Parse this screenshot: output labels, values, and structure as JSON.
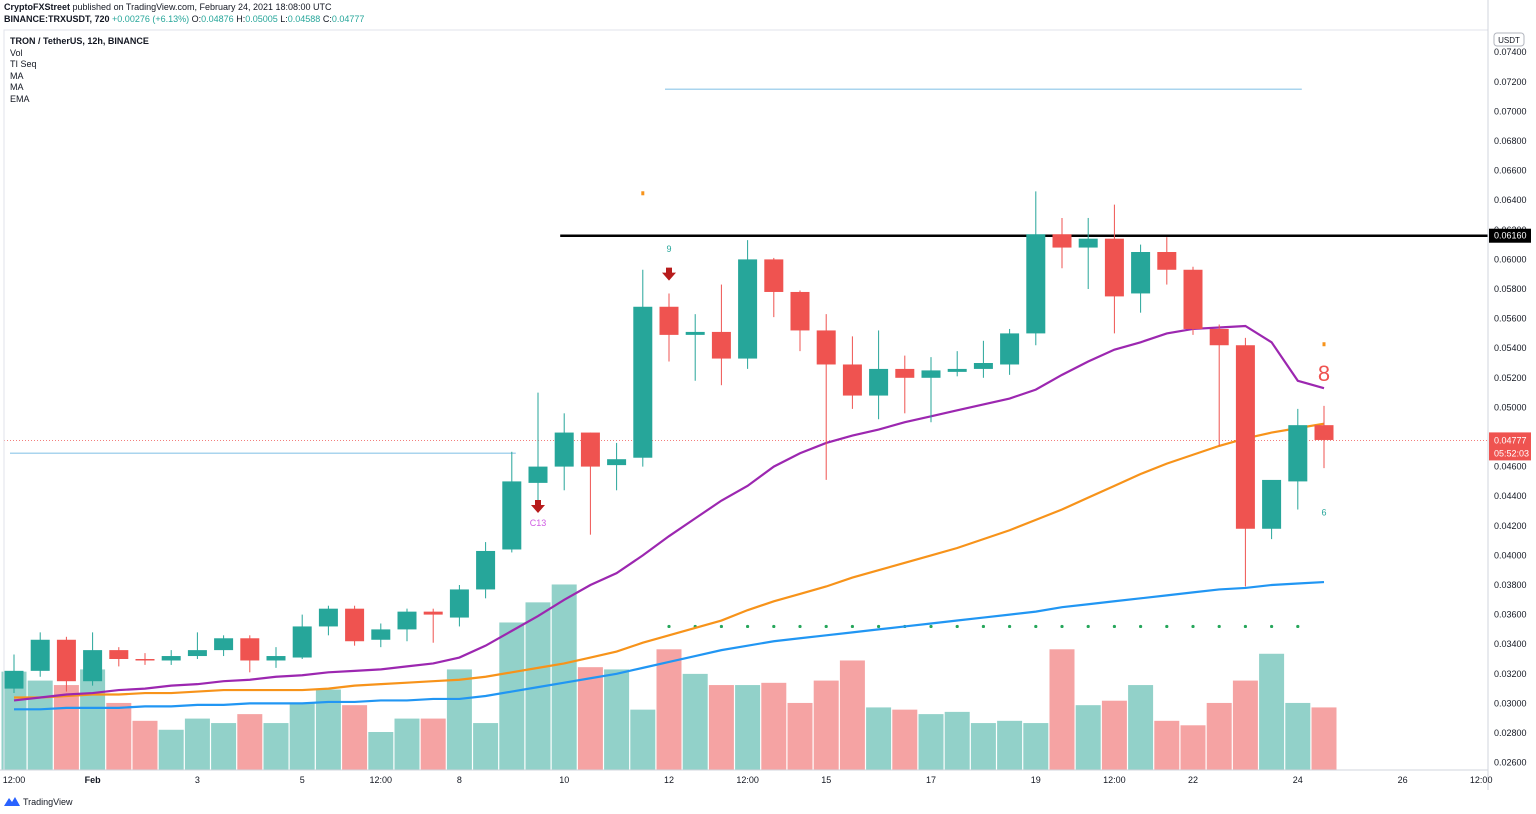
{
  "header": {
    "publisher": "CryptoFXStreet",
    "published_text": "published on TradingView.com, February 24, 2021 18:08:00 UTC",
    "symbol_line": "BINANCE:TRXUSDT, 720",
    "change": "+0.00276 (+6.13%)",
    "o_label": "O:",
    "o_value": "0.04876",
    "h_label": "H:",
    "h_value": "0.05005",
    "l_label": "L:",
    "l_value": "0.04588",
    "c_label": "C:",
    "c_value": "0.04777"
  },
  "legend": {
    "symbol": "TRON / TetherUS, 12h, BINANCE",
    "items": [
      "Vol",
      "TI Seq",
      "MA",
      "MA",
      "EMA"
    ]
  },
  "footer": {
    "brand": "TradingView"
  },
  "colors": {
    "up": "#26a69a",
    "down": "#ef5350",
    "vol_up": "#92d1c9",
    "vol_down": "#f5a3a3",
    "ma_purple": "#9c27b0",
    "ma_orange": "#f7931a",
    "ema_blue": "#2196f3",
    "hline_light": "#a9d4ee",
    "hline_black": "#000000",
    "dots": "#26a65b"
  },
  "chart_data": {
    "type": "candlestick",
    "y_axis": {
      "unit": "USDT",
      "min": 0.0255,
      "max": 0.0755,
      "ticks": [
        "0.02600",
        "0.02800",
        "0.03000",
        "0.03200",
        "0.03400",
        "0.03600",
        "0.03800",
        "0.04000",
        "0.04200",
        "0.04400",
        "0.04600",
        "0.04800",
        "0.05000",
        "0.05200",
        "0.05400",
        "0.05600",
        "0.05800",
        "0.06000",
        "0.06200",
        "0.06400",
        "0.06600",
        "0.06800",
        "0.07000",
        "0.07200",
        "0.07400"
      ]
    },
    "x_axis": {
      "ticks": [
        {
          "i": 0,
          "label": "12:00"
        },
        {
          "i": 3,
          "label": "Feb"
        },
        {
          "i": 7,
          "label": "3"
        },
        {
          "i": 11,
          "label": "5"
        },
        {
          "i": 14,
          "label": "12:00"
        },
        {
          "i": 17,
          "label": "8"
        },
        {
          "i": 21,
          "label": "10"
        },
        {
          "i": 25,
          "label": "12"
        },
        {
          "i": 28,
          "label": "12:00"
        },
        {
          "i": 31,
          "label": "15"
        },
        {
          "i": 35,
          "label": "17"
        },
        {
          "i": 39,
          "label": "19"
        },
        {
          "i": 42,
          "label": "12:00"
        },
        {
          "i": 45,
          "label": "22"
        },
        {
          "i": 49,
          "label": "24"
        },
        {
          "i": 53,
          "label": "26"
        },
        {
          "i": 56,
          "label": "12:00"
        }
      ]
    },
    "candles": [
      {
        "o": 0.031,
        "h": 0.0333,
        "l": 0.0307,
        "c": 0.0322
      },
      {
        "o": 0.0322,
        "h": 0.0348,
        "l": 0.0318,
        "c": 0.0343
      },
      {
        "o": 0.0343,
        "h": 0.0345,
        "l": 0.0308,
        "c": 0.0315
      },
      {
        "o": 0.0315,
        "h": 0.0348,
        "l": 0.0312,
        "c": 0.0336
      },
      {
        "o": 0.0336,
        "h": 0.0338,
        "l": 0.0325,
        "c": 0.033
      },
      {
        "o": 0.033,
        "h": 0.0334,
        "l": 0.0326,
        "c": 0.0329
      },
      {
        "o": 0.0329,
        "h": 0.0336,
        "l": 0.0326,
        "c": 0.0332
      },
      {
        "o": 0.0332,
        "h": 0.0348,
        "l": 0.033,
        "c": 0.0336
      },
      {
        "o": 0.0336,
        "h": 0.0346,
        "l": 0.0332,
        "c": 0.0344
      },
      {
        "o": 0.0344,
        "h": 0.0346,
        "l": 0.0321,
        "c": 0.0329
      },
      {
        "o": 0.0329,
        "h": 0.0338,
        "l": 0.0324,
        "c": 0.0332
      },
      {
        "o": 0.0331,
        "h": 0.036,
        "l": 0.033,
        "c": 0.0352
      },
      {
        "o": 0.0352,
        "h": 0.0366,
        "l": 0.0346,
        "c": 0.0364
      },
      {
        "o": 0.0364,
        "h": 0.0366,
        "l": 0.0339,
        "c": 0.0342
      },
      {
        "o": 0.0343,
        "h": 0.0354,
        "l": 0.0338,
        "c": 0.035
      },
      {
        "o": 0.035,
        "h": 0.0364,
        "l": 0.0342,
        "c": 0.0362
      },
      {
        "o": 0.0362,
        "h": 0.0364,
        "l": 0.0341,
        "c": 0.036
      },
      {
        "o": 0.0358,
        "h": 0.038,
        "l": 0.0352,
        "c": 0.0377
      },
      {
        "o": 0.0377,
        "h": 0.0409,
        "l": 0.0371,
        "c": 0.0403
      },
      {
        "o": 0.0404,
        "h": 0.047,
        "l": 0.0402,
        "c": 0.045
      },
      {
        "o": 0.0449,
        "h": 0.051,
        "l": 0.0436,
        "c": 0.046
      },
      {
        "o": 0.046,
        "h": 0.0496,
        "l": 0.0444,
        "c": 0.0483
      },
      {
        "o": 0.0483,
        "h": 0.0483,
        "l": 0.0414,
        "c": 0.046
      },
      {
        "o": 0.0461,
        "h": 0.0476,
        "l": 0.0444,
        "c": 0.0465
      },
      {
        "o": 0.0466,
        "h": 0.0593,
        "l": 0.046,
        "c": 0.0568
      },
      {
        "o": 0.0568,
        "h": 0.0577,
        "l": 0.0531,
        "c": 0.0549
      },
      {
        "o": 0.0549,
        "h": 0.0563,
        "l": 0.0518,
        "c": 0.0551
      },
      {
        "o": 0.0551,
        "h": 0.0583,
        "l": 0.0515,
        "c": 0.0533
      },
      {
        "o": 0.0533,
        "h": 0.0613,
        "l": 0.0526,
        "c": 0.06
      },
      {
        "o": 0.06,
        "h": 0.0601,
        "l": 0.0561,
        "c": 0.0578
      },
      {
        "o": 0.0578,
        "h": 0.0579,
        "l": 0.0538,
        "c": 0.0552
      },
      {
        "o": 0.0552,
        "h": 0.0563,
        "l": 0.0451,
        "c": 0.0529
      },
      {
        "o": 0.0529,
        "h": 0.0548,
        "l": 0.0499,
        "c": 0.0508
      },
      {
        "o": 0.0508,
        "h": 0.0552,
        "l": 0.0492,
        "c": 0.0526
      },
      {
        "o": 0.0526,
        "h": 0.0535,
        "l": 0.0496,
        "c": 0.052
      },
      {
        "o": 0.052,
        "h": 0.0534,
        "l": 0.049,
        "c": 0.0525
      },
      {
        "o": 0.0524,
        "h": 0.0538,
        "l": 0.0521,
        "c": 0.0526
      },
      {
        "o": 0.0526,
        "h": 0.0545,
        "l": 0.052,
        "c": 0.053
      },
      {
        "o": 0.0529,
        "h": 0.0553,
        "l": 0.0522,
        "c": 0.055
      },
      {
        "o": 0.055,
        "h": 0.0646,
        "l": 0.0542,
        "c": 0.0617
      },
      {
        "o": 0.0617,
        "h": 0.0628,
        "l": 0.0594,
        "c": 0.0608
      },
      {
        "o": 0.0608,
        "h": 0.0628,
        "l": 0.058,
        "c": 0.0614
      },
      {
        "o": 0.0614,
        "h": 0.0637,
        "l": 0.055,
        "c": 0.0575
      },
      {
        "o": 0.0577,
        "h": 0.061,
        "l": 0.0564,
        "c": 0.0605
      },
      {
        "o": 0.0605,
        "h": 0.0615,
        "l": 0.0583,
        "c": 0.0593
      },
      {
        "o": 0.0593,
        "h": 0.0595,
        "l": 0.0549,
        "c": 0.0553
      },
      {
        "o": 0.0553,
        "h": 0.0556,
        "l": 0.0474,
        "c": 0.0542
      },
      {
        "o": 0.0542,
        "h": 0.0547,
        "l": 0.0379,
        "c": 0.0418
      },
      {
        "o": 0.0418,
        "h": 0.045,
        "l": 0.0411,
        "c": 0.0451
      },
      {
        "o": 0.045,
        "h": 0.0499,
        "l": 0.0431,
        "c": 0.0488
      },
      {
        "o": 0.0488,
        "h": 0.0501,
        "l": 0.0459,
        "c": 0.0478
      }
    ],
    "volume": {
      "max": 0.03,
      "values": [
        0.0044,
        0.004,
        0.0038,
        0.0045,
        0.003,
        0.0022,
        0.0018,
        0.0023,
        0.0021,
        0.0025,
        0.0021,
        0.003,
        0.0036,
        0.0029,
        0.0017,
        0.0023,
        0.0023,
        0.0045,
        0.0021,
        0.0066,
        0.0075,
        0.0083,
        0.0046,
        0.0045,
        0.0027,
        0.0054,
        0.0043,
        0.0038,
        0.0038,
        0.0039,
        0.003,
        0.004,
        0.0049,
        0.0028,
        0.0027,
        0.0025,
        0.0026,
        0.0021,
        0.0022,
        0.0021,
        0.0054,
        0.0029,
        0.0031,
        0.0038,
        0.0022,
        0.002,
        0.003,
        0.004,
        0.0052,
        0.003,
        0.0028
      ]
    },
    "ma_purple": [
      0.0302,
      0.0304,
      0.0306,
      0.0307,
      0.0309,
      0.031,
      0.0312,
      0.0313,
      0.0315,
      0.0316,
      0.0318,
      0.0319,
      0.0321,
      0.0322,
      0.0323,
      0.0325,
      0.0327,
      0.0331,
      0.0339,
      0.0349,
      0.0359,
      0.037,
      0.038,
      0.0388,
      0.04,
      0.0413,
      0.0425,
      0.0437,
      0.0447,
      0.046,
      0.0469,
      0.0476,
      0.0481,
      0.0485,
      0.049,
      0.0494,
      0.0498,
      0.0502,
      0.0506,
      0.0512,
      0.0522,
      0.0531,
      0.0539,
      0.0544,
      0.055,
      0.0553,
      0.0554,
      0.0555,
      0.0544,
      0.0518,
      0.0513
    ],
    "ma_orange": [
      0.0304,
      0.0304,
      0.0305,
      0.0306,
      0.0306,
      0.0307,
      0.0307,
      0.0308,
      0.0309,
      0.0309,
      0.0309,
      0.0309,
      0.031,
      0.0312,
      0.0313,
      0.0314,
      0.0315,
      0.0316,
      0.0318,
      0.0321,
      0.0324,
      0.0327,
      0.0331,
      0.0335,
      0.0341,
      0.0346,
      0.0351,
      0.0356,
      0.0363,
      0.0369,
      0.0374,
      0.0379,
      0.0385,
      0.039,
      0.0395,
      0.04,
      0.0405,
      0.0411,
      0.0417,
      0.0424,
      0.0431,
      0.0439,
      0.0447,
      0.0455,
      0.0462,
      0.0468,
      0.0474,
      0.0479,
      0.0483,
      0.0486,
      0.0489
    ],
    "ema_blue": [
      0.0296,
      0.0296,
      0.0297,
      0.0297,
      0.0297,
      0.0298,
      0.0298,
      0.0299,
      0.0299,
      0.03,
      0.03,
      0.03,
      0.0301,
      0.0301,
      0.0302,
      0.0302,
      0.0303,
      0.0303,
      0.0305,
      0.0308,
      0.0311,
      0.0314,
      0.0317,
      0.032,
      0.0324,
      0.0328,
      0.0332,
      0.0336,
      0.0339,
      0.0342,
      0.0344,
      0.0346,
      0.0348,
      0.035,
      0.0352,
      0.0354,
      0.0356,
      0.0358,
      0.036,
      0.0362,
      0.0365,
      0.0367,
      0.0369,
      0.0371,
      0.0373,
      0.0375,
      0.0377,
      0.0378,
      0.038,
      0.0381,
      0.0382
    ],
    "hlines": [
      {
        "price": 0.0715,
        "from": 25,
        "to": 49,
        "kind": "light"
      },
      {
        "price": 0.0469,
        "from": -1,
        "to": 19,
        "kind": "light"
      },
      {
        "price": 0.0616,
        "from": 21,
        "to": 57,
        "kind": "black",
        "label": "0.06160"
      }
    ],
    "dots": {
      "price": 0.0352,
      "from": 25,
      "to": 49
    },
    "current_price": {
      "price": 0.04777,
      "label": "0.04777",
      "countdown": "05:52:03"
    },
    "annotations": [
      {
        "i": 25,
        "text": "9",
        "price": 0.0605,
        "color": "#26a69a"
      },
      {
        "i": 20,
        "text": "C13",
        "price": 0.042,
        "color": "#d05ce3"
      },
      {
        "i": 50,
        "text": "8",
        "price": 0.0518,
        "color": "#ef5350",
        "big": true
      },
      {
        "i": 50,
        "text": "6",
        "price": 0.0427,
        "color": "#26a69a"
      }
    ],
    "arrows": [
      {
        "i": 25,
        "price": 0.0589
      },
      {
        "i": 20,
        "price": 0.0432
      }
    ],
    "markers": [
      {
        "i": 24,
        "price": 0.0644
      },
      {
        "i": 50,
        "price": 0.0542
      }
    ]
  }
}
